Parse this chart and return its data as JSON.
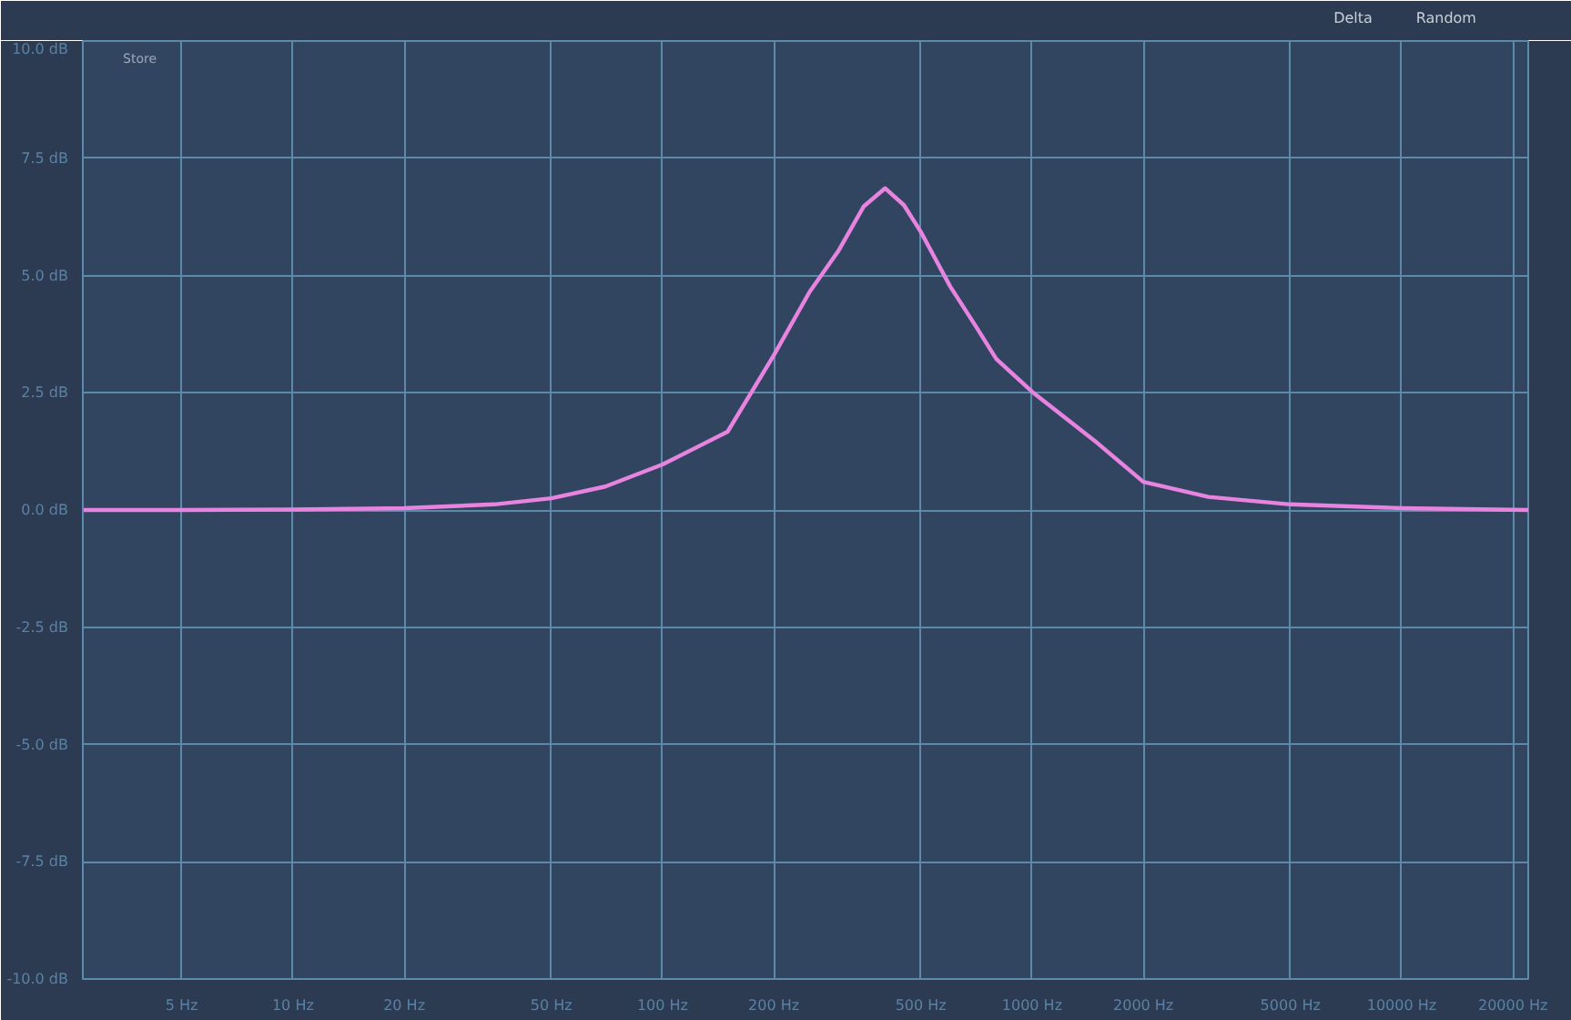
{
  "chart_data": {
    "type": "line",
    "log": "x",
    "grid": true,
    "x": [
      2.7,
      5,
      10,
      20,
      35,
      50,
      70,
      100,
      150,
      200,
      250,
      300,
      350,
      400,
      450,
      500,
      600,
      700,
      800,
      1000,
      1500,
      2000,
      3000,
      5000,
      10000,
      22000
    ],
    "series": [
      {
        "color": "#e884e0",
        "values": [
          0,
          0,
          0.01,
          0.04,
          0.12,
          0.25,
          0.5,
          0.97,
          1.67,
          3.3,
          4.65,
          5.54,
          6.47,
          6.86,
          6.5,
          5.93,
          4.77,
          3.95,
          3.22,
          2.52,
          1.43,
          0.6,
          0.28,
          0.12,
          0.04,
          0
        ]
      }
    ],
    "xlim": [
      2.7,
      22000
    ],
    "xticks": [
      {
        "value": 5,
        "label": "5 Hz"
      },
      {
        "value": 10,
        "label": "10 Hz"
      },
      {
        "value": 20,
        "label": "20 Hz"
      },
      {
        "value": 50,
        "label": "50 Hz"
      },
      {
        "value": 100,
        "label": "100 Hz"
      },
      {
        "value": 200,
        "label": "200 Hz"
      },
      {
        "value": 500,
        "label": "500 Hz"
      },
      {
        "value": 1000,
        "label": "1000 Hz"
      },
      {
        "value": 2000,
        "label": "2000 Hz"
      },
      {
        "value": 5000,
        "label": "5000 Hz"
      },
      {
        "value": 10000,
        "label": "10000 Hz"
      },
      {
        "value": 20000,
        "label": "20000 Hz"
      }
    ],
    "ylim": [
      -10,
      10
    ],
    "yticks": [
      {
        "value": -10,
        "label": "-10.0 dB"
      },
      {
        "value": -7.5,
        "label": "-7.5 dB"
      },
      {
        "value": -5,
        "label": "-5.0 dB"
      },
      {
        "value": -2.5,
        "label": "-2.5 dB"
      },
      {
        "value": 0,
        "label": "0.0 dB"
      },
      {
        "value": 2.5,
        "label": "2.5 dB"
      },
      {
        "value": 5,
        "label": "5.0 dB"
      },
      {
        "value": 7.5,
        "label": "7.5 dB"
      },
      {
        "value": 10,
        "label": "10.0 dB"
      }
    ],
    "annotations": [
      "Store",
      "Delta",
      "Random"
    ]
  }
}
